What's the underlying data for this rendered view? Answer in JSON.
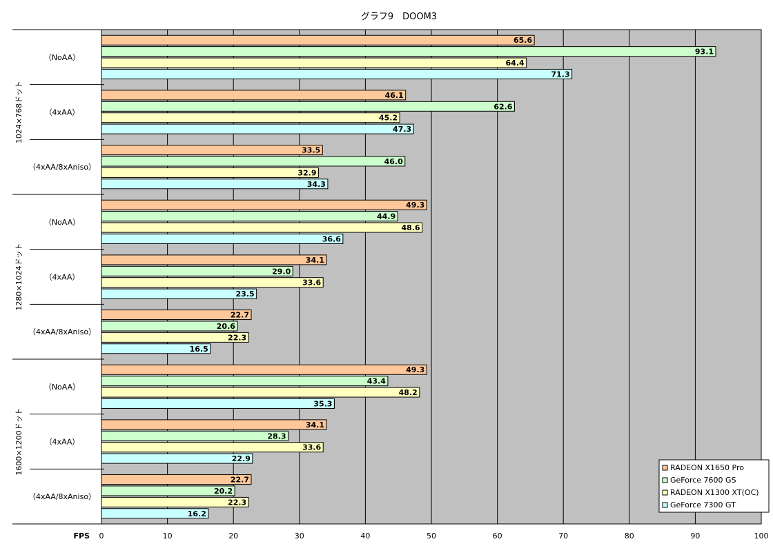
{
  "chart_data": {
    "type": "bar",
    "orientation": "horizontal",
    "title": "グラフ9　DOOM3",
    "xlabel": "FPS",
    "xlim": [
      0,
      100
    ],
    "x_ticks": [
      0,
      10,
      20,
      30,
      40,
      50,
      60,
      70,
      80,
      90,
      100
    ],
    "grid": true,
    "legend_position": "bottom-right",
    "groups": [
      {
        "resolution": "1024×768ドット",
        "settings": [
          {
            "label": "（NoAA）",
            "values": [
              65.6,
              93.1,
              64.4,
              71.3
            ]
          },
          {
            "label": "（4xAA）",
            "values": [
              46.1,
              62.6,
              45.2,
              47.3
            ]
          },
          {
            "label": "（4xAA/8xAniso）",
            "values": [
              33.5,
              46.0,
              32.9,
              34.3
            ]
          }
        ]
      },
      {
        "resolution": "1280×1024ドット",
        "settings": [
          {
            "label": "（NoAA）",
            "values": [
              49.3,
              44.9,
              48.6,
              36.6
            ]
          },
          {
            "label": "（4xAA）",
            "values": [
              34.1,
              29.0,
              33.6,
              23.5
            ]
          },
          {
            "label": "（4xAA/8xAniso）",
            "values": [
              22.7,
              20.6,
              22.3,
              16.5
            ]
          }
        ]
      },
      {
        "resolution": "1600×1200ドット",
        "settings": [
          {
            "label": "（NoAA）",
            "values": [
              49.3,
              43.4,
              48.2,
              35.3
            ]
          },
          {
            "label": "（4xAA）",
            "values": [
              34.1,
              28.3,
              33.6,
              22.9
            ]
          },
          {
            "label": "（4xAA/8xAniso）",
            "values": [
              22.7,
              20.2,
              22.3,
              16.2
            ]
          }
        ]
      }
    ],
    "series": [
      {
        "name": "RADEON X1650 Pro",
        "color": "#FFC89B"
      },
      {
        "name": "GeForce 7600 GS",
        "color": "#CCFFCC"
      },
      {
        "name": "RADEON X1300 XT(OC)",
        "color": "#FFFFC0"
      },
      {
        "name": "GeForce 7300 GT",
        "color": "#C8FFFF"
      }
    ],
    "plot_background": "#C0C0C0"
  }
}
